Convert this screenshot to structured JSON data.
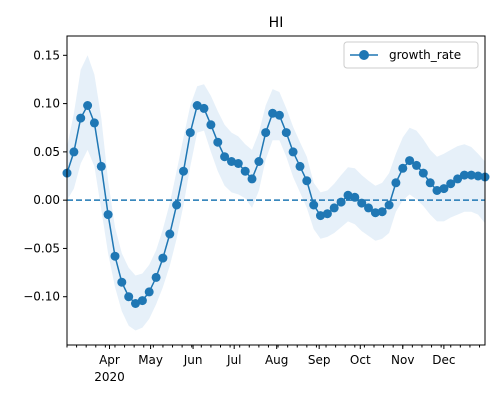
{
  "chart_data": {
    "type": "line",
    "title": "HI",
    "xlabel": "",
    "ylabel": "",
    "x_range": [
      "2020-03-01",
      "2020-12-31"
    ],
    "ylim": [
      -0.15,
      0.17
    ],
    "yticks": [
      -0.1,
      -0.05,
      0.0,
      0.05,
      0.1,
      0.15
    ],
    "ytick_labels": [
      "−0.10",
      "−0.05",
      "0.00",
      "0.05",
      "0.10",
      "0.15"
    ],
    "xticks": [
      {
        "date": "2020-04-01",
        "label": "Apr",
        "sublabel": "2020"
      },
      {
        "date": "2020-05-01",
        "label": "May"
      },
      {
        "date": "2020-06-01",
        "label": "Jun"
      },
      {
        "date": "2020-07-01",
        "label": "Jul"
      },
      {
        "date": "2020-08-01",
        "label": "Aug"
      },
      {
        "date": "2020-09-01",
        "label": "Sep"
      },
      {
        "date": "2020-10-01",
        "label": "Oct"
      },
      {
        "date": "2020-11-01",
        "label": "Nov"
      },
      {
        "date": "2020-12-01",
        "label": "Dec"
      }
    ],
    "reference_line": {
      "y": 0,
      "style": "dashed",
      "color": "#1f77b4"
    },
    "legend": {
      "position": "top-right",
      "entries": [
        "growth_rate"
      ]
    },
    "grid": false,
    "colors": {
      "series": "#1f77b4",
      "band": "#dce9f6"
    },
    "series": [
      {
        "name": "growth_rate",
        "marker": "circle",
        "points": [
          [
            "2020-03-01",
            0.028
          ],
          [
            "2020-03-06",
            0.05
          ],
          [
            "2020-03-11",
            0.085
          ],
          [
            "2020-03-16",
            0.098
          ],
          [
            "2020-03-21",
            0.08
          ],
          [
            "2020-03-26",
            0.035
          ],
          [
            "2020-03-31",
            -0.015
          ],
          [
            "2020-04-05",
            -0.058
          ],
          [
            "2020-04-10",
            -0.085
          ],
          [
            "2020-04-15",
            -0.1
          ],
          [
            "2020-04-20",
            -0.107
          ],
          [
            "2020-04-25",
            -0.104
          ],
          [
            "2020-04-30",
            -0.095
          ],
          [
            "2020-05-05",
            -0.08
          ],
          [
            "2020-05-10",
            -0.06
          ],
          [
            "2020-05-15",
            -0.035
          ],
          [
            "2020-05-20",
            -0.005
          ],
          [
            "2020-05-25",
            0.03
          ],
          [
            "2020-05-30",
            0.07
          ],
          [
            "2020-06-04",
            0.098
          ],
          [
            "2020-06-09",
            0.095
          ],
          [
            "2020-06-14",
            0.078
          ],
          [
            "2020-06-19",
            0.06
          ],
          [
            "2020-06-24",
            0.045
          ],
          [
            "2020-06-29",
            0.04
          ],
          [
            "2020-07-04",
            0.038
          ],
          [
            "2020-07-09",
            0.03
          ],
          [
            "2020-07-14",
            0.022
          ],
          [
            "2020-07-19",
            0.04
          ],
          [
            "2020-07-24",
            0.07
          ],
          [
            "2020-07-29",
            0.09
          ],
          [
            "2020-08-03",
            0.088
          ],
          [
            "2020-08-08",
            0.07
          ],
          [
            "2020-08-13",
            0.05
          ],
          [
            "2020-08-18",
            0.035
          ],
          [
            "2020-08-23",
            0.02
          ],
          [
            "2020-08-28",
            -0.005
          ],
          [
            "2020-09-02",
            -0.016
          ],
          [
            "2020-09-07",
            -0.014
          ],
          [
            "2020-09-12",
            -0.008
          ],
          [
            "2020-09-17",
            -0.002
          ],
          [
            "2020-09-22",
            0.005
          ],
          [
            "2020-09-27",
            0.003
          ],
          [
            "2020-10-02",
            -0.003
          ],
          [
            "2020-10-07",
            -0.008
          ],
          [
            "2020-10-12",
            -0.013
          ],
          [
            "2020-10-17",
            -0.012
          ],
          [
            "2020-10-22",
            -0.005
          ],
          [
            "2020-10-27",
            0.018
          ],
          [
            "2020-11-01",
            0.033
          ],
          [
            "2020-11-06",
            0.041
          ],
          [
            "2020-11-11",
            0.036
          ],
          [
            "2020-11-16",
            0.028
          ],
          [
            "2020-11-21",
            0.018
          ],
          [
            "2020-11-26",
            0.01
          ],
          [
            "2020-12-01",
            0.012
          ],
          [
            "2020-12-06",
            0.017
          ],
          [
            "2020-12-11",
            0.022
          ],
          [
            "2020-12-16",
            0.026
          ],
          [
            "2020-12-21",
            0.026
          ],
          [
            "2020-12-26",
            0.025
          ],
          [
            "2020-12-31",
            0.024
          ]
        ],
        "band_upper": [
          0.055,
          0.09,
          0.135,
          0.15,
          0.13,
          0.085,
          0.02,
          -0.028,
          -0.055,
          -0.07,
          -0.078,
          -0.076,
          -0.067,
          -0.052,
          -0.03,
          -0.003,
          0.03,
          0.065,
          0.098,
          0.118,
          0.12,
          0.108,
          0.092,
          0.078,
          0.07,
          0.066,
          0.058,
          0.052,
          0.07,
          0.098,
          0.115,
          0.112,
          0.095,
          0.076,
          0.06,
          0.045,
          0.018,
          0.008,
          0.01,
          0.017,
          0.026,
          0.034,
          0.033,
          0.026,
          0.02,
          0.015,
          0.018,
          0.028,
          0.048,
          0.065,
          0.075,
          0.072,
          0.063,
          0.052,
          0.045,
          0.048,
          0.052,
          0.056,
          0.058,
          0.055,
          0.048,
          0.04
        ],
        "band_lower": [
          0.0,
          0.012,
          0.038,
          0.052,
          0.035,
          -0.01,
          -0.055,
          -0.09,
          -0.115,
          -0.13,
          -0.135,
          -0.132,
          -0.123,
          -0.108,
          -0.09,
          -0.068,
          -0.04,
          -0.005,
          0.035,
          0.07,
          0.072,
          0.05,
          0.03,
          0.015,
          0.008,
          0.006,
          0.002,
          -0.008,
          0.01,
          0.042,
          0.062,
          0.062,
          0.045,
          0.024,
          0.008,
          -0.008,
          -0.03,
          -0.04,
          -0.038,
          -0.034,
          -0.028,
          -0.022,
          -0.025,
          -0.032,
          -0.037,
          -0.042,
          -0.04,
          -0.034,
          -0.012,
          0.0,
          0.006,
          0.001,
          -0.006,
          -0.015,
          -0.022,
          -0.022,
          -0.018,
          -0.015,
          -0.012,
          -0.012,
          -0.015,
          -0.024
        ]
      }
    ]
  }
}
